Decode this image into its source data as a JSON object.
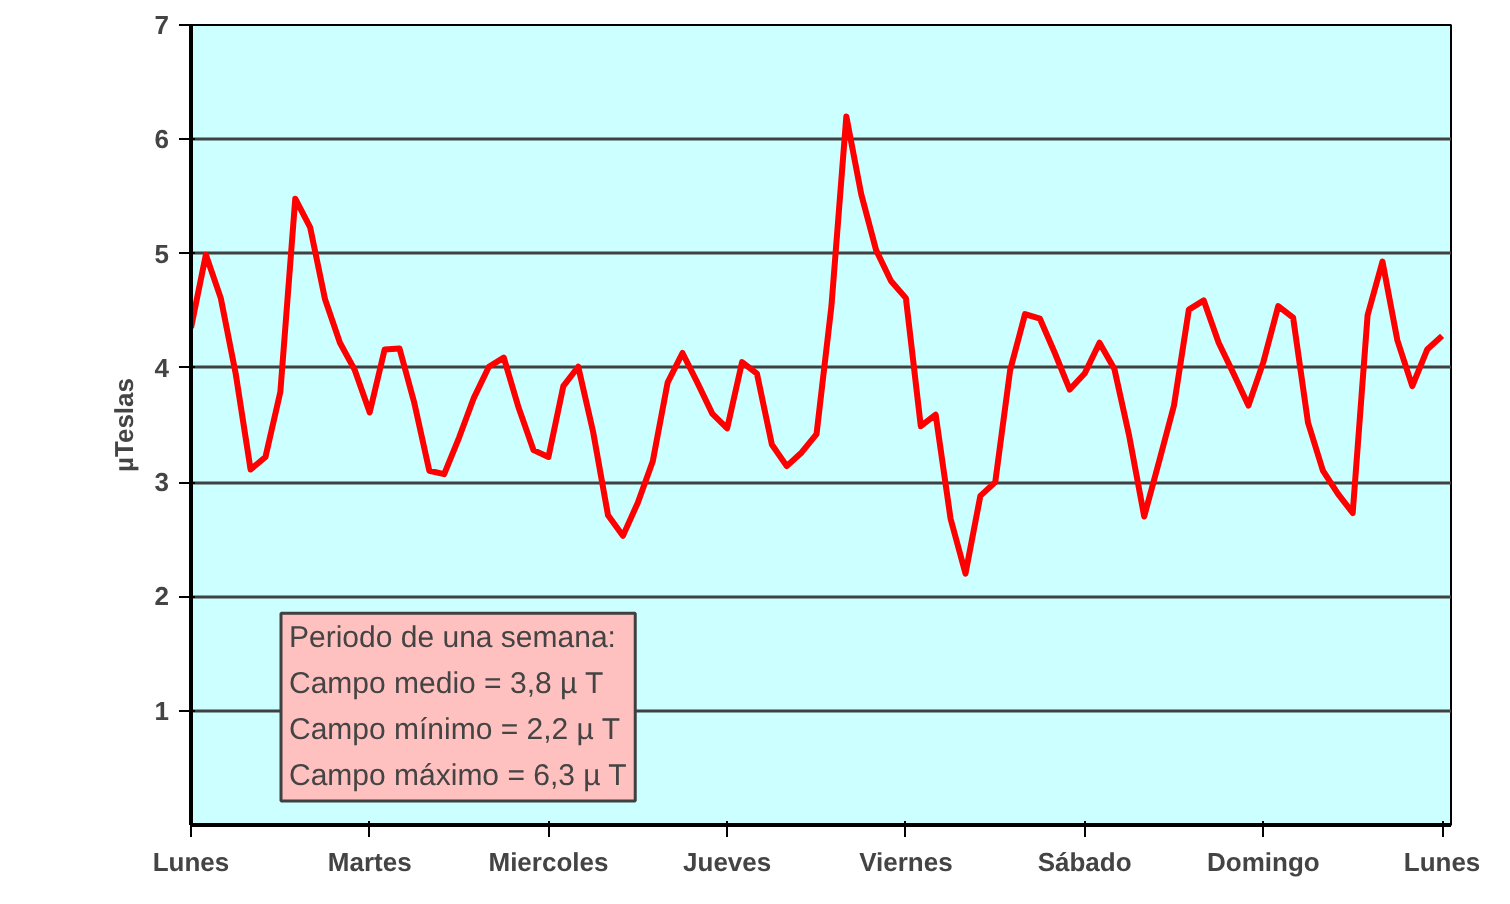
{
  "chart_data": {
    "type": "line",
    "ylabel": "µTeslas",
    "categories": [
      "Lunes",
      null,
      null,
      null,
      null,
      null,
      null,
      null,
      null,
      null,
      null,
      null,
      "Martes",
      null,
      null,
      null,
      null,
      null,
      null,
      null,
      null,
      null,
      null,
      null,
      "Miercoles",
      null,
      null,
      null,
      null,
      null,
      null,
      null,
      null,
      null,
      null,
      null,
      "Jueves",
      null,
      null,
      null,
      null,
      null,
      null,
      null,
      null,
      null,
      null,
      null,
      "Viernes",
      null,
      null,
      null,
      null,
      null,
      null,
      null,
      null,
      null,
      null,
      null,
      "Sábado",
      null,
      null,
      null,
      null,
      null,
      null,
      null,
      null,
      null,
      null,
      null,
      "Domingo",
      null,
      null,
      null,
      null,
      null,
      null,
      null,
      null,
      null,
      null,
      null,
      "Lunes"
    ],
    "ylim": [
      0,
      7
    ],
    "yticks": [
      1,
      2,
      3,
      4,
      5,
      6,
      7
    ],
    "grid": "y",
    "annotations": [
      "Periodo de una semana:",
      "Campo medio = 3,8 µ T",
      "Campo mínimo = 2,2 µ T",
      "Campo máximo = 6,3 µ T"
    ],
    "series": [
      {
        "color": "#ff0000",
        "values": [
          4.35,
          4.99,
          4.61,
          3.95,
          3.11,
          3.22,
          3.79,
          5.48,
          5.23,
          4.6,
          4.22,
          3.98,
          3.61,
          4.16,
          4.17,
          3.69,
          3.1,
          3.07,
          3.39,
          3.74,
          4.01,
          4.09,
          3.65,
          3.28,
          3.22,
          3.84,
          4.01,
          3.44,
          2.71,
          2.53,
          2.82,
          3.18,
          3.87,
          4.13,
          3.87,
          3.6,
          3.47,
          4.05,
          3.95,
          3.33,
          3.14,
          3.26,
          3.42,
          4.54,
          6.2,
          5.52,
          5.03,
          4.76,
          4.61,
          3.49,
          3.59,
          2.68,
          2.2,
          2.88,
          3.0,
          3.98,
          4.47,
          4.43,
          4.13,
          3.81,
          3.95,
          4.22,
          3.99,
          3.4,
          2.7,
          3.18,
          3.67,
          4.51,
          4.59,
          4.22,
          3.95,
          3.67,
          4.05,
          4.54,
          4.44,
          3.52,
          3.1,
          2.9,
          2.73,
          4.46,
          4.93,
          4.24,
          3.84,
          4.16,
          4.28
        ]
      }
    ]
  }
}
